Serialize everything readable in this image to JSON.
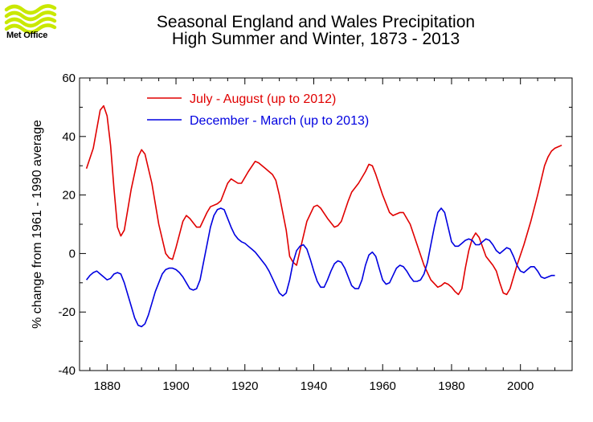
{
  "header": {
    "logo_text": "Met Office",
    "logo_icon": "met-office-waves-icon",
    "logo_color": "#c9e800"
  },
  "chart_data": {
    "type": "line",
    "title": "Seasonal England and Wales Precipitation",
    "subtitle": "High Summer and Winter, 1873 - 2013",
    "xlabel": "",
    "ylabel": "% change from 1961 - 1990 average",
    "xlim": [
      1872,
      2015
    ],
    "ylim": [
      -40,
      60
    ],
    "x_ticks": [
      1880,
      1900,
      1920,
      1940,
      1960,
      1980,
      2000
    ],
    "y_ticks": [
      -40,
      -20,
      0,
      20,
      40,
      60
    ],
    "grid": false,
    "legend_position": "top-left",
    "series": [
      {
        "name": "July - August (up to 2012)",
        "color": "#e00000",
        "points": [
          [
            1874,
            29
          ],
          [
            1876,
            36
          ],
          [
            1878,
            49
          ],
          [
            1879,
            50.5
          ],
          [
            1880,
            47
          ],
          [
            1881,
            37
          ],
          [
            1882,
            22
          ],
          [
            1883,
            9
          ],
          [
            1884,
            6
          ],
          [
            1885,
            8
          ],
          [
            1887,
            22
          ],
          [
            1889,
            33
          ],
          [
            1890,
            35.5
          ],
          [
            1891,
            34
          ],
          [
            1893,
            24
          ],
          [
            1895,
            10
          ],
          [
            1897,
            0
          ],
          [
            1898,
            -1.5
          ],
          [
            1899,
            -2
          ],
          [
            1900,
            2
          ],
          [
            1902,
            11
          ],
          [
            1903,
            13
          ],
          [
            1904,
            12
          ],
          [
            1906,
            9
          ],
          [
            1907,
            9
          ],
          [
            1909,
            14
          ],
          [
            1910,
            16
          ],
          [
            1912,
            17
          ],
          [
            1913,
            18
          ],
          [
            1915,
            24
          ],
          [
            1916,
            25.5
          ],
          [
            1918,
            24
          ],
          [
            1919,
            24
          ],
          [
            1921,
            28
          ],
          [
            1923,
            31.5
          ],
          [
            1924,
            31
          ],
          [
            1926,
            29
          ],
          [
            1928,
            27
          ],
          [
            1929,
            25
          ],
          [
            1930,
            20
          ],
          [
            1932,
            8
          ],
          [
            1933,
            -1
          ],
          [
            1934,
            -3
          ],
          [
            1935,
            -4
          ],
          [
            1936,
            1
          ],
          [
            1938,
            11
          ],
          [
            1940,
            16
          ],
          [
            1941,
            16.5
          ],
          [
            1942,
            15.5
          ],
          [
            1944,
            12
          ],
          [
            1946,
            9
          ],
          [
            1947,
            9.5
          ],
          [
            1948,
            11
          ],
          [
            1950,
            18
          ],
          [
            1951,
            21
          ],
          [
            1953,
            24
          ],
          [
            1955,
            28
          ],
          [
            1956,
            30.5
          ],
          [
            1957,
            30
          ],
          [
            1958,
            27
          ],
          [
            1960,
            20
          ],
          [
            1962,
            14
          ],
          [
            1963,
            13
          ],
          [
            1965,
            14
          ],
          [
            1966,
            14
          ],
          [
            1968,
            10
          ],
          [
            1970,
            3
          ],
          [
            1972,
            -4
          ],
          [
            1974,
            -9
          ],
          [
            1976,
            -11.5
          ],
          [
            1977,
            -11
          ],
          [
            1978,
            -10
          ],
          [
            1979,
            -10.5
          ],
          [
            1980,
            -11.5
          ],
          [
            1981,
            -13
          ],
          [
            1982,
            -14
          ],
          [
            1983,
            -12
          ],
          [
            1984,
            -5
          ],
          [
            1985,
            1
          ],
          [
            1986,
            5
          ],
          [
            1987,
            7
          ],
          [
            1988,
            5.5
          ],
          [
            1990,
            -1
          ],
          [
            1992,
            -4
          ],
          [
            1993,
            -6
          ],
          [
            1994,
            -10
          ],
          [
            1995,
            -13.5
          ],
          [
            1996,
            -14
          ],
          [
            1997,
            -12
          ],
          [
            1999,
            -4
          ],
          [
            2001,
            3
          ],
          [
            2003,
            11
          ],
          [
            2005,
            20
          ],
          [
            2007,
            30
          ],
          [
            2008,
            33
          ],
          [
            2009,
            35
          ],
          [
            2010,
            36
          ],
          [
            2011,
            36.5
          ],
          [
            2012,
            37
          ]
        ]
      },
      {
        "name": "December - March (up to 2013)",
        "color": "#0000e0",
        "points": [
          [
            1874,
            -9
          ],
          [
            1875,
            -7.5
          ],
          [
            1876,
            -6.5
          ],
          [
            1877,
            -6
          ],
          [
            1878,
            -7
          ],
          [
            1879,
            -8
          ],
          [
            1880,
            -9
          ],
          [
            1881,
            -8.5
          ],
          [
            1882,
            -7
          ],
          [
            1883,
            -6.5
          ],
          [
            1884,
            -7
          ],
          [
            1885,
            -10
          ],
          [
            1886,
            -14
          ],
          [
            1887,
            -18
          ],
          [
            1888,
            -22
          ],
          [
            1889,
            -24.5
          ],
          [
            1890,
            -25
          ],
          [
            1891,
            -24
          ],
          [
            1892,
            -21
          ],
          [
            1893,
            -17
          ],
          [
            1894,
            -13
          ],
          [
            1895,
            -10
          ],
          [
            1896,
            -7
          ],
          [
            1897,
            -5.5
          ],
          [
            1898,
            -5
          ],
          [
            1899,
            -5
          ],
          [
            1900,
            -5.5
          ],
          [
            1901,
            -6.5
          ],
          [
            1902,
            -8
          ],
          [
            1903,
            -10
          ],
          [
            1904,
            -12
          ],
          [
            1905,
            -12.5
          ],
          [
            1906,
            -12
          ],
          [
            1907,
            -9
          ],
          [
            1908,
            -3
          ],
          [
            1909,
            3
          ],
          [
            1910,
            9
          ],
          [
            1911,
            13
          ],
          [
            1912,
            15
          ],
          [
            1913,
            15.5
          ],
          [
            1914,
            15
          ],
          [
            1915,
            12
          ],
          [
            1916,
            9
          ],
          [
            1917,
            6.5
          ],
          [
            1918,
            5
          ],
          [
            1919,
            4
          ],
          [
            1920,
            3.5
          ],
          [
            1921,
            2.5
          ],
          [
            1922,
            1.5
          ],
          [
            1923,
            0.5
          ],
          [
            1924,
            -1
          ],
          [
            1925,
            -2.5
          ],
          [
            1926,
            -4
          ],
          [
            1927,
            -6
          ],
          [
            1928,
            -8.5
          ],
          [
            1929,
            -11
          ],
          [
            1930,
            -13.5
          ],
          [
            1931,
            -14.5
          ],
          [
            1932,
            -13.5
          ],
          [
            1933,
            -9
          ],
          [
            1934,
            -3
          ],
          [
            1935,
            1
          ],
          [
            1936,
            2.5
          ],
          [
            1937,
            3
          ],
          [
            1938,
            1.5
          ],
          [
            1939,
            -2
          ],
          [
            1940,
            -6
          ],
          [
            1941,
            -9.5
          ],
          [
            1942,
            -11.5
          ],
          [
            1943,
            -11.5
          ],
          [
            1944,
            -9
          ],
          [
            1945,
            -6
          ],
          [
            1946,
            -3.5
          ],
          [
            1947,
            -2.5
          ],
          [
            1948,
            -3
          ],
          [
            1949,
            -5
          ],
          [
            1950,
            -8
          ],
          [
            1951,
            -11
          ],
          [
            1952,
            -12
          ],
          [
            1953,
            -12
          ],
          [
            1954,
            -9
          ],
          [
            1955,
            -4
          ],
          [
            1956,
            -0.5
          ],
          [
            1957,
            0.5
          ],
          [
            1958,
            -1
          ],
          [
            1959,
            -5
          ],
          [
            1960,
            -9
          ],
          [
            1961,
            -10.5
          ],
          [
            1962,
            -10
          ],
          [
            1963,
            -7.5
          ],
          [
            1964,
            -5
          ],
          [
            1965,
            -4
          ],
          [
            1966,
            -4.5
          ],
          [
            1967,
            -6
          ],
          [
            1968,
            -8
          ],
          [
            1969,
            -9.5
          ],
          [
            1970,
            -9.5
          ],
          [
            1971,
            -9
          ],
          [
            1972,
            -7
          ],
          [
            1973,
            -3
          ],
          [
            1974,
            3
          ],
          [
            1975,
            9
          ],
          [
            1976,
            14
          ],
          [
            1977,
            15.5
          ],
          [
            1978,
            14
          ],
          [
            1979,
            9
          ],
          [
            1980,
            4
          ],
          [
            1981,
            2.5
          ],
          [
            1982,
            2.5
          ],
          [
            1983,
            3.5
          ],
          [
            1984,
            4.5
          ],
          [
            1985,
            5
          ],
          [
            1986,
            4.5
          ],
          [
            1987,
            3
          ],
          [
            1988,
            3
          ],
          [
            1989,
            4
          ],
          [
            1990,
            5
          ],
          [
            1991,
            4.5
          ],
          [
            1992,
            3
          ],
          [
            1993,
            1
          ],
          [
            1994,
            0
          ],
          [
            1995,
            1
          ],
          [
            1996,
            2
          ],
          [
            1997,
            1.5
          ],
          [
            1998,
            -1
          ],
          [
            1999,
            -4
          ],
          [
            2000,
            -6
          ],
          [
            2001,
            -6.5
          ],
          [
            2002,
            -5.5
          ],
          [
            2003,
            -4.5
          ],
          [
            2004,
            -4.5
          ],
          [
            2005,
            -6
          ],
          [
            2006,
            -8
          ],
          [
            2007,
            -8.5
          ],
          [
            2008,
            -8
          ],
          [
            2009,
            -7.5
          ],
          [
            2010,
            -7.5
          ]
        ]
      }
    ]
  }
}
